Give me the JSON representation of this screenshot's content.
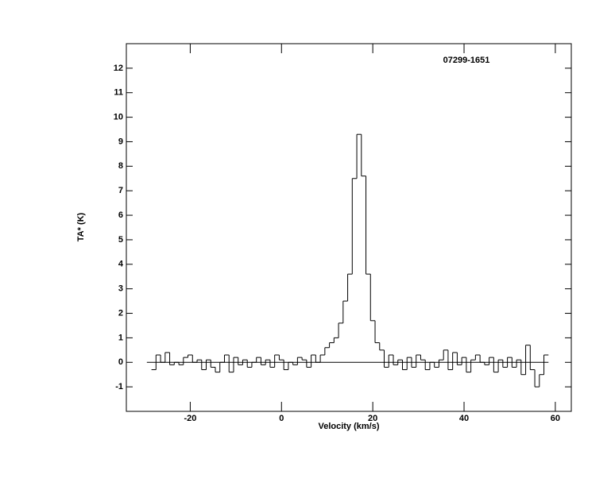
{
  "chart_data": {
    "type": "step",
    "annotation": "07299-1651",
    "xlabel": "Velocity (km/s)",
    "ylabel": "TA* (K)",
    "x": [
      -28,
      -27,
      -26,
      -25,
      -24,
      -23,
      -22,
      -21,
      -20,
      -19,
      -18,
      -17,
      -16,
      -15,
      -14,
      -13,
      -12,
      -11,
      -10,
      -9,
      -8,
      -7,
      -6,
      -5,
      -4,
      -3,
      -2,
      -1,
      0,
      1,
      2,
      3,
      4,
      5,
      6,
      7,
      8,
      9,
      10,
      11,
      12,
      13,
      14,
      15,
      16,
      17,
      18,
      19,
      20,
      21,
      22,
      23,
      24,
      25,
      26,
      27,
      28,
      29,
      30,
      31,
      32,
      33,
      34,
      35,
      36,
      37,
      38,
      39,
      40,
      41,
      42,
      43,
      44,
      45,
      46,
      47,
      48,
      49,
      50,
      51,
      52,
      53,
      54,
      55,
      56,
      57,
      58
    ],
    "values": [
      -0.3,
      0.3,
      0.0,
      0.4,
      -0.1,
      0.0,
      -0.1,
      0.2,
      0.3,
      0.0,
      0.1,
      -0.3,
      0.1,
      -0.2,
      -0.4,
      0.0,
      0.3,
      -0.4,
      0.2,
      -0.1,
      0.1,
      -0.2,
      0.0,
      0.2,
      -0.1,
      0.1,
      -0.2,
      0.3,
      0.1,
      -0.3,
      0.0,
      -0.1,
      0.2,
      0.1,
      -0.2,
      0.3,
      0.0,
      0.3,
      0.6,
      0.8,
      1.0,
      1.6,
      2.5,
      3.6,
      7.5,
      9.3,
      7.6,
      3.6,
      1.7,
      0.8,
      0.5,
      -0.2,
      0.3,
      -0.1,
      0.1,
      -0.3,
      0.2,
      -0.2,
      0.3,
      0.1,
      -0.3,
      0.0,
      -0.2,
      0.1,
      0.5,
      -0.3,
      0.4,
      -0.1,
      0.2,
      -0.4,
      0.1,
      0.3,
      0.0,
      -0.1,
      0.2,
      -0.4,
      0.1,
      -0.2,
      0.2,
      -0.2,
      0.1,
      -0.5,
      0.7,
      -0.3,
      -1.0,
      -0.5,
      0.3
    ],
    "color": "#000000",
    "xlim": [
      -34,
      63.5
    ],
    "ylim": [
      -2,
      13
    ],
    "xticks": [
      -20,
      0,
      20,
      40,
      60
    ],
    "yticks": [
      -1,
      0,
      1,
      2,
      3,
      4,
      5,
      6,
      7,
      8,
      9,
      10,
      11,
      12
    ]
  }
}
